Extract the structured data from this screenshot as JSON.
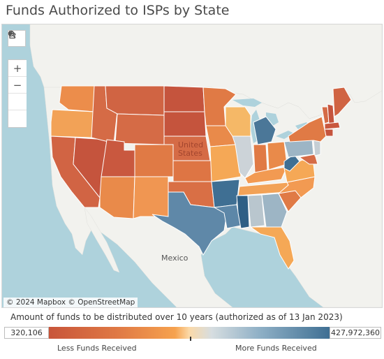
{
  "title": "Funds Authorized to ISPs by State",
  "map": {
    "country_label_us": "United States",
    "country_label_mx": "Mexico",
    "attribution": "© 2024 Mapbox © OpenStreetMap",
    "toolbar": {
      "search_icon": "search-icon",
      "zoom_in_label": "+",
      "zoom_out_label": "−",
      "home_icon": "home-icon",
      "pan_icon": "play-icon"
    },
    "colors": {
      "water": "#aed2dc",
      "land": "#f2f2ee",
      "state_border": "#ffffff",
      "low": "#c8553a",
      "mid_low": "#f6a24e",
      "neutral": "#d6dde0",
      "high": "#3f6f93"
    }
  },
  "legend": {
    "title": "Amount of funds to be distributed over 10 years (authorized as of 13 Jan 2023)",
    "min_label": "320,106",
    "max_label": "427,972,360",
    "low_caption": "Less Funds Received",
    "high_caption": "More Funds Received"
  }
}
